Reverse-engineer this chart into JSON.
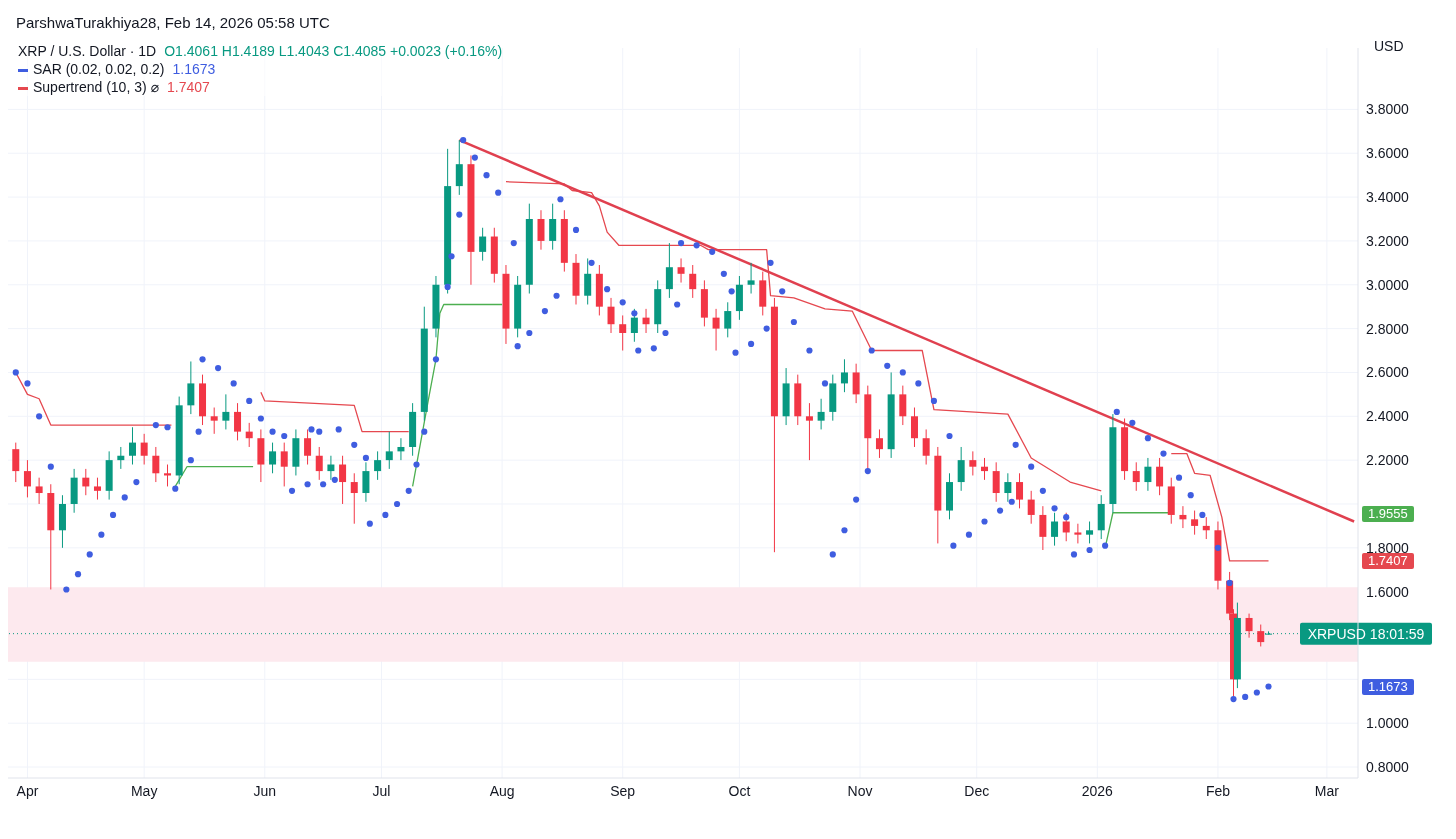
{
  "chart_data": {
    "type": "candlestick",
    "title": "XRP / U.S. Dollar · 1D",
    "subtitle": "O1.4061 H1.4189 L1.4043 C1.4085 +0.0023 (+0.16%)",
    "ylabel": "USD",
    "annotations": [
      "ParshwaTurakhiya28, Feb 14, 2026 05:58 UTC",
      "1.1673",
      "1.7407",
      "1.9555",
      "1.7407",
      "1.1673"
    ],
    "xlim": [
      "2025-03-27",
      "2026-03-09"
    ],
    "xticks": [
      {
        "value": "2025-04-01",
        "label": "Apr"
      },
      {
        "value": "2025-05-01",
        "label": "May"
      },
      {
        "value": "2025-06-01",
        "label": "Jun"
      },
      {
        "value": "2025-07-01",
        "label": "Jul"
      },
      {
        "value": "2025-08-01",
        "label": "Aug"
      },
      {
        "value": "2025-09-01",
        "label": "Sep"
      },
      {
        "value": "2025-10-01",
        "label": "Oct"
      },
      {
        "value": "2025-11-01",
        "label": "Nov"
      },
      {
        "value": "2025-12-01",
        "label": "Dec"
      },
      {
        "value": "2026-01-01",
        "label": "2026"
      },
      {
        "value": "2026-02-01",
        "label": "Feb"
      },
      {
        "value": "2026-03-01",
        "label": "Mar"
      }
    ],
    "ylim": [
      0.75,
      4.08
    ],
    "yticks": [
      {
        "value": 0.8,
        "label": "0.8000"
      },
      {
        "value": 1.0,
        "label": "1.0000"
      },
      {
        "value": 1.2,
        "label": null
      },
      {
        "value": 1.4,
        "label": null
      },
      {
        "value": 1.6,
        "label": "1.6000"
      },
      {
        "value": 1.8,
        "label": "1.8000"
      },
      {
        "value": 2.0,
        "label": null
      },
      {
        "value": 2.2,
        "label": "2.2000"
      },
      {
        "value": 2.4,
        "label": "2.4000"
      },
      {
        "value": 2.6,
        "label": "2.6000"
      },
      {
        "value": 2.8,
        "label": "2.8000"
      },
      {
        "value": 3.0,
        "label": "3.0000"
      },
      {
        "value": 3.2,
        "label": "3.2000"
      },
      {
        "value": 3.4,
        "label": "3.4000"
      },
      {
        "value": 3.6,
        "label": "3.6000"
      },
      {
        "value": 3.8,
        "label": "3.8000"
      }
    ],
    "grid": true,
    "legend": "top left",
    "bands": [
      {
        "axis": "y",
        "from": 1.28,
        "to": 1.62,
        "color": "#fde9ee"
      }
    ],
    "ref_lines": [
      {
        "axis": "y",
        "value": 1.4085,
        "label": "XRPUSD 18:01:59",
        "color": "#089981",
        "line_style": "dotted"
      }
    ],
    "series": [
      {
        "x": [
          "2025-03-29",
          "2025-04-01",
          "2025-04-04",
          "2025-04-07",
          "2025-04-10",
          "2025-04-13",
          "2025-04-16",
          "2025-04-19",
          "2025-04-22",
          "2025-04-25",
          "2025-04-28",
          "2025-05-01",
          "2025-05-04",
          "2025-05-07",
          "2025-05-10",
          "2025-05-13",
          "2025-05-16",
          "2025-05-19",
          "2025-05-22",
          "2025-05-25",
          "2025-05-28",
          "2025-05-31",
          "2025-06-03",
          "2025-06-06",
          "2025-06-09",
          "2025-06-12",
          "2025-06-15",
          "2025-06-18",
          "2025-06-21",
          "2025-06-24",
          "2025-06-27",
          "2025-06-30",
          "2025-07-03",
          "2025-07-06",
          "2025-07-09",
          "2025-07-12",
          "2025-07-15",
          "2025-07-18",
          "2025-07-21",
          "2025-07-24",
          "2025-07-27",
          "2025-07-30",
          "2025-08-02",
          "2025-08-05",
          "2025-08-08",
          "2025-08-11",
          "2025-08-14",
          "2025-08-17",
          "2025-08-20",
          "2025-08-23",
          "2025-08-26",
          "2025-08-29",
          "2025-09-01",
          "2025-09-04",
          "2025-09-07",
          "2025-09-10",
          "2025-09-13",
          "2025-09-16",
          "2025-09-19",
          "2025-09-22",
          "2025-09-25",
          "2025-09-28",
          "2025-10-01",
          "2025-10-04",
          "2025-10-07",
          "2025-10-10",
          "2025-10-13",
          "2025-10-16",
          "2025-10-19",
          "2025-10-22",
          "2025-10-25",
          "2025-10-28",
          "2025-10-31",
          "2025-11-03",
          "2025-11-06",
          "2025-11-09",
          "2025-11-12",
          "2025-11-15",
          "2025-11-18",
          "2025-11-21",
          "2025-11-24",
          "2025-11-27",
          "2025-11-30",
          "2025-12-03",
          "2025-12-06",
          "2025-12-09",
          "2025-12-12",
          "2025-12-15",
          "2025-12-18",
          "2025-12-21",
          "2025-12-24",
          "2025-12-27",
          "2025-12-30",
          "2026-01-02",
          "2026-01-05",
          "2026-01-08",
          "2026-01-11",
          "2026-01-14",
          "2026-01-17",
          "2026-01-20",
          "2026-01-23",
          "2026-01-26",
          "2026-01-29",
          "2026-02-01",
          "2026-02-04",
          "2026-02-05",
          "2026-02-06",
          "2026-02-09",
          "2026-02-12",
          "2026-02-14"
        ],
        "ohlc": [
          [
            2.25,
            2.28,
            2.1,
            2.15
          ],
          [
            2.15,
            2.2,
            2.03,
            2.08
          ],
          [
            2.08,
            2.12,
            2.0,
            2.05
          ],
          [
            2.05,
            2.09,
            1.61,
            1.88
          ],
          [
            1.88,
            2.04,
            1.8,
            2.0
          ],
          [
            2.0,
            2.16,
            1.96,
            2.12
          ],
          [
            2.12,
            2.16,
            2.04,
            2.08
          ],
          [
            2.08,
            2.12,
            2.02,
            2.06
          ],
          [
            2.06,
            2.24,
            2.02,
            2.2
          ],
          [
            2.2,
            2.26,
            2.16,
            2.22
          ],
          [
            2.22,
            2.35,
            2.18,
            2.28
          ],
          [
            2.28,
            2.32,
            2.18,
            2.22
          ],
          [
            2.22,
            2.26,
            2.1,
            2.14
          ],
          [
            2.14,
            2.18,
            2.08,
            2.13
          ],
          [
            2.13,
            2.49,
            2.09,
            2.45
          ],
          [
            2.45,
            2.65,
            2.41,
            2.55
          ],
          [
            2.55,
            2.59,
            2.36,
            2.4
          ],
          [
            2.4,
            2.44,
            2.32,
            2.38
          ],
          [
            2.38,
            2.5,
            2.34,
            2.42
          ],
          [
            2.42,
            2.46,
            2.29,
            2.33
          ],
          [
            2.33,
            2.37,
            2.26,
            2.3
          ],
          [
            2.3,
            2.34,
            2.1,
            2.18
          ],
          [
            2.18,
            2.28,
            2.14,
            2.24
          ],
          [
            2.24,
            2.28,
            2.08,
            2.17
          ],
          [
            2.17,
            2.34,
            2.13,
            2.3
          ],
          [
            2.3,
            2.34,
            2.18,
            2.22
          ],
          [
            2.22,
            2.26,
            2.11,
            2.15
          ],
          [
            2.15,
            2.22,
            2.11,
            2.18
          ],
          [
            2.18,
            2.22,
            2.0,
            2.1
          ],
          [
            2.1,
            2.14,
            1.91,
            2.05
          ],
          [
            2.05,
            2.19,
            2.01,
            2.15
          ],
          [
            2.15,
            2.24,
            2.11,
            2.2
          ],
          [
            2.2,
            2.33,
            2.16,
            2.24
          ],
          [
            2.24,
            2.3,
            2.2,
            2.26
          ],
          [
            2.26,
            2.46,
            2.22,
            2.42
          ],
          [
            2.42,
            2.9,
            2.38,
            2.8
          ],
          [
            2.8,
            3.04,
            2.76,
            3.0
          ],
          [
            3.0,
            3.62,
            2.96,
            3.45
          ],
          [
            3.45,
            3.66,
            3.41,
            3.55
          ],
          [
            3.55,
            3.59,
            3.0,
            3.15
          ],
          [
            3.15,
            3.26,
            3.11,
            3.22
          ],
          [
            3.22,
            3.26,
            3.01,
            3.05
          ],
          [
            3.05,
            3.09,
            2.73,
            2.8
          ],
          [
            2.8,
            3.04,
            2.76,
            3.0
          ],
          [
            3.0,
            3.37,
            2.96,
            3.3
          ],
          [
            3.3,
            3.34,
            3.16,
            3.2
          ],
          [
            3.2,
            3.37,
            3.16,
            3.3
          ],
          [
            3.3,
            3.34,
            3.06,
            3.1
          ],
          [
            3.1,
            3.14,
            2.91,
            2.95
          ],
          [
            2.95,
            3.12,
            2.91,
            3.05
          ],
          [
            3.05,
            3.09,
            2.86,
            2.9
          ],
          [
            2.9,
            2.94,
            2.78,
            2.82
          ],
          [
            2.82,
            2.86,
            2.7,
            2.78
          ],
          [
            2.78,
            2.89,
            2.74,
            2.85
          ],
          [
            2.85,
            2.89,
            2.78,
            2.82
          ],
          [
            2.82,
            3.02,
            2.78,
            2.98
          ],
          [
            2.98,
            3.19,
            2.94,
            3.08
          ],
          [
            3.08,
            3.12,
            3.01,
            3.05
          ],
          [
            3.05,
            3.09,
            2.94,
            2.98
          ],
          [
            2.98,
            3.02,
            2.81,
            2.85
          ],
          [
            2.85,
            2.89,
            2.7,
            2.8
          ],
          [
            2.8,
            2.92,
            2.76,
            2.88
          ],
          [
            2.88,
            3.04,
            2.84,
            3.0
          ],
          [
            3.0,
            3.1,
            2.96,
            3.02
          ],
          [
            3.02,
            3.06,
            2.86,
            2.9
          ],
          [
            2.9,
            2.94,
            1.78,
            2.4
          ],
          [
            2.4,
            2.62,
            2.36,
            2.55
          ],
          [
            2.55,
            2.59,
            2.36,
            2.4
          ],
          [
            2.4,
            2.46,
            2.2,
            2.38
          ],
          [
            2.38,
            2.48,
            2.34,
            2.42
          ],
          [
            2.42,
            2.59,
            2.38,
            2.55
          ],
          [
            2.55,
            2.66,
            2.51,
            2.6
          ],
          [
            2.6,
            2.64,
            2.46,
            2.5
          ],
          [
            2.5,
            2.54,
            2.15,
            2.3
          ],
          [
            2.3,
            2.34,
            2.21,
            2.25
          ],
          [
            2.25,
            2.6,
            2.21,
            2.5
          ],
          [
            2.5,
            2.54,
            2.36,
            2.4
          ],
          [
            2.4,
            2.44,
            2.26,
            2.3
          ],
          [
            2.3,
            2.34,
            2.18,
            2.22
          ],
          [
            2.22,
            2.26,
            1.82,
            1.97
          ],
          [
            1.97,
            2.14,
            1.93,
            2.1
          ],
          [
            2.1,
            2.26,
            2.06,
            2.2
          ],
          [
            2.2,
            2.24,
            2.13,
            2.17
          ],
          [
            2.17,
            2.21,
            2.11,
            2.15
          ],
          [
            2.15,
            2.19,
            2.01,
            2.05
          ],
          [
            2.05,
            2.14,
            2.01,
            2.1
          ],
          [
            2.1,
            2.14,
            1.98,
            2.02
          ],
          [
            2.02,
            2.06,
            1.91,
            1.95
          ],
          [
            1.95,
            1.99,
            1.79,
            1.85
          ],
          [
            1.85,
            1.96,
            1.81,
            1.92
          ],
          [
            1.92,
            1.96,
            1.83,
            1.87
          ],
          [
            1.87,
            1.91,
            1.82,
            1.86
          ],
          [
            1.86,
            1.92,
            1.82,
            1.88
          ],
          [
            1.88,
            2.04,
            1.84,
            2.0
          ],
          [
            2.0,
            2.41,
            1.96,
            2.35
          ],
          [
            2.35,
            2.39,
            2.11,
            2.15
          ],
          [
            2.15,
            2.19,
            2.06,
            2.1
          ],
          [
            2.1,
            2.21,
            2.06,
            2.17
          ],
          [
            2.17,
            2.21,
            2.04,
            2.08
          ],
          [
            2.08,
            2.12,
            1.91,
            1.95
          ],
          [
            1.95,
            1.99,
            1.89,
            1.93
          ],
          [
            1.93,
            1.97,
            1.86,
            1.9
          ],
          [
            1.9,
            1.94,
            1.84,
            1.88
          ],
          [
            1.88,
            1.92,
            1.61,
            1.65
          ],
          [
            1.65,
            1.69,
            1.47,
            1.5
          ],
          [
            1.5,
            1.52,
            1.12,
            1.2
          ],
          [
            1.2,
            1.55,
            1.16,
            1.48
          ],
          [
            1.48,
            1.5,
            1.39,
            1.42
          ],
          [
            1.42,
            1.45,
            1.35,
            1.37
          ],
          [
            1.4061,
            1.4189,
            1.4043,
            1.4085
          ]
        ],
        "colors": [
          "#f23645",
          "#f23645",
          "#f23645",
          "#f23645",
          "#089981",
          "#089981",
          "#f23645",
          "#f23645",
          "#089981",
          "#089981",
          "#089981",
          "#f23645",
          "#f23645",
          "#f23645",
          "#089981",
          "#089981",
          "#f23645",
          "#f23645",
          "#089981",
          "#f23645",
          "#f23645",
          "#f23645",
          "#089981",
          "#f23645",
          "#089981",
          "#f23645",
          "#f23645",
          "#089981",
          "#f23645",
          "#f23645",
          "#089981",
          "#089981",
          "#089981",
          "#089981",
          "#089981",
          "#089981",
          "#089981",
          "#089981",
          "#089981",
          "#f23645",
          "#089981",
          "#f23645",
          "#f23645",
          "#089981",
          "#089981",
          "#f23645",
          "#089981",
          "#f23645",
          "#f23645",
          "#089981",
          "#f23645",
          "#f23645",
          "#f23645",
          "#089981",
          "#f23645",
          "#089981",
          "#089981",
          "#f23645",
          "#f23645",
          "#f23645",
          "#f23645",
          "#089981",
          "#089981",
          "#089981",
          "#f23645",
          "#f23645",
          "#089981",
          "#f23645",
          "#f23645",
          "#089981",
          "#089981",
          "#089981",
          "#f23645",
          "#f23645",
          "#f23645",
          "#089981",
          "#f23645",
          "#f23645",
          "#f23645",
          "#f23645",
          "#089981",
          "#089981",
          "#f23645",
          "#f23645",
          "#f23645",
          "#089981",
          "#f23645",
          "#f23645",
          "#f23645",
          "#089981",
          "#f23645",
          "#f23645",
          "#089981",
          "#089981",
          "#089981",
          "#f23645",
          "#f23645",
          "#089981",
          "#f23645",
          "#f23645",
          "#f23645",
          "#f23645",
          "#f23645",
          "#f23645",
          "#f23645",
          "#f23645",
          "#089981",
          "#f23645",
          "#f23645",
          "#089981"
        ]
      },
      {
        "type": "scatter",
        "name": "SAR (0.02, 0.02, 0.2)",
        "color": "#3f5de0",
        "marker": "circle",
        "x": [
          "2025-03-29",
          "2025-04-01",
          "2025-04-04",
          "2025-04-07",
          "2025-04-11",
          "2025-04-14",
          "2025-04-17",
          "2025-04-20",
          "2025-04-23",
          "2025-04-26",
          "2025-04-29",
          "2025-05-04",
          "2025-05-07",
          "2025-05-09",
          "2025-05-13",
          "2025-05-15",
          "2025-05-16",
          "2025-05-20",
          "2025-05-24",
          "2025-05-28",
          "2025-05-31",
          "2025-06-03",
          "2025-06-06",
          "2025-06-08",
          "2025-06-12",
          "2025-06-13",
          "2025-06-15",
          "2025-06-16",
          "2025-06-19",
          "2025-06-20",
          "2025-06-24",
          "2025-06-27",
          "2025-06-28",
          "2025-07-02",
          "2025-07-05",
          "2025-07-08",
          "2025-07-10",
          "2025-07-12",
          "2025-07-15",
          "2025-07-18",
          "2025-07-19",
          "2025-07-21",
          "2025-07-22",
          "2025-07-25",
          "2025-07-28",
          "2025-07-31",
          "2025-08-04",
          "2025-08-05",
          "2025-08-08",
          "2025-08-12",
          "2025-08-15",
          "2025-08-16",
          "2025-08-20",
          "2025-08-24",
          "2025-08-28",
          "2025-09-01",
          "2025-09-04",
          "2025-09-05",
          "2025-09-09",
          "2025-09-12",
          "2025-09-15",
          "2025-09-16",
          "2025-09-20",
          "2025-09-24",
          "2025-09-27",
          "2025-09-29",
          "2025-09-30",
          "2025-10-04",
          "2025-10-08",
          "2025-10-09",
          "2025-10-12",
          "2025-10-15",
          "2025-10-19",
          "2025-10-23",
          "2025-10-25",
          "2025-10-28",
          "2025-10-31",
          "2025-11-03",
          "2025-11-04",
          "2025-11-08",
          "2025-11-12",
          "2025-11-16",
          "2025-11-20",
          "2025-11-24",
          "2025-11-25",
          "2025-11-29",
          "2025-12-03",
          "2025-12-07",
          "2025-12-10",
          "2025-12-11",
          "2025-12-15",
          "2025-12-18",
          "2025-12-21",
          "2025-12-24",
          "2025-12-26",
          "2025-12-30",
          "2026-01-03",
          "2026-01-06",
          "2026-01-10",
          "2026-01-14",
          "2026-01-18",
          "2026-01-22",
          "2026-01-25",
          "2026-01-28",
          "2026-02-01",
          "2026-02-04",
          "2026-02-05",
          "2026-02-08",
          "2026-02-11",
          "2026-02-14"
        ],
        "values": [
          2.6,
          2.55,
          2.4,
          2.17,
          1.61,
          1.68,
          1.77,
          1.86,
          1.95,
          2.03,
          2.1,
          2.36,
          2.35,
          2.07,
          2.2,
          2.33,
          2.66,
          2.62,
          2.55,
          2.47,
          2.39,
          2.33,
          2.31,
          2.06,
          2.09,
          2.34,
          2.33,
          2.09,
          2.11,
          2.34,
          2.27,
          2.21,
          1.91,
          1.95,
          2.0,
          2.06,
          2.18,
          2.33,
          2.66,
          2.99,
          3.13,
          3.32,
          3.66,
          3.58,
          3.5,
          3.42,
          3.19,
          2.72,
          2.78,
          2.88,
          2.95,
          3.39,
          3.25,
          3.1,
          2.98,
          2.92,
          2.87,
          2.7,
          2.71,
          2.78,
          2.91,
          3.19,
          3.18,
          3.15,
          3.05,
          2.97,
          2.69,
          2.73,
          2.8,
          3.1,
          2.97,
          2.83,
          2.7,
          2.55,
          1.77,
          1.88,
          2.02,
          2.15,
          2.7,
          2.63,
          2.6,
          2.55,
          2.47,
          2.31,
          1.81,
          1.86,
          1.92,
          1.97,
          2.01,
          2.27,
          2.17,
          2.06,
          1.98,
          1.94,
          1.77,
          1.79,
          1.81,
          2.42,
          2.37,
          2.3,
          2.23,
          2.12,
          2.04,
          1.95,
          1.8,
          1.64,
          1.11,
          1.12,
          1.14,
          1.1673
        ]
      },
      {
        "type": "line",
        "name": "Supertrend (10, 3) ⌀",
        "color": "#e5484f",
        "x": [
          "2025-03-29",
          "2025-04-01",
          "2025-04-04",
          "2025-04-07",
          "2025-05-08",
          "2025-05-09",
          "2025-05-31",
          "2025-06-01",
          "2025-06-24",
          "2025-06-26",
          "2025-07-08",
          "2025-07-09",
          "2025-08-02",
          "2025-08-17",
          "2025-08-19",
          "2025-08-24",
          "2025-08-26",
          "2025-08-28",
          "2025-08-31",
          "2025-09-21",
          "2025-09-23",
          "2025-10-08",
          "2025-10-09",
          "2025-10-15",
          "2025-10-23",
          "2025-10-30",
          "2025-11-04",
          "2025-11-17",
          "2025-11-20",
          "2025-12-09",
          "2025-12-15",
          "2025-12-25",
          "2026-01-02",
          "2026-01-03",
          "2026-01-20",
          "2026-01-24",
          "2026-01-26",
          "2026-01-30",
          "2026-02-02",
          "2026-02-04",
          "2026-02-14"
        ],
        "values": [
          2.6,
          2.5,
          2.48,
          2.36,
          2.36,
          null,
          2.51,
          2.47,
          2.45,
          2.33,
          2.33,
          null,
          3.47,
          3.46,
          3.43,
          3.42,
          3.36,
          3.24,
          3.18,
          3.18,
          3.16,
          3.16,
          2.95,
          2.94,
          2.89,
          2.88,
          2.7,
          2.7,
          2.43,
          2.41,
          2.21,
          2.1,
          2.06,
          null,
          2.23,
          2.23,
          2.14,
          2.13,
          1.94,
          1.74,
          1.7407
        ]
      },
      {
        "type": "line",
        "color": "#4caf50",
        "x": [
          "2025-05-09",
          "2025-05-12",
          "2025-05-29",
          "2025-05-30",
          "2025-07-09",
          "2025-07-13",
          "2025-07-15",
          "2025-07-16",
          "2025-07-17",
          "2025-08-01",
          "2025-08-02",
          "2026-01-03",
          "2026-01-05",
          "2026-01-20"
        ],
        "values": [
          2.08,
          2.17,
          2.17,
          null,
          2.08,
          2.47,
          2.66,
          2.87,
          2.91,
          2.91,
          null,
          1.8,
          1.96,
          1.96
        ]
      },
      {
        "type": "line",
        "color": "#e0404f",
        "x": [
          "2025-07-21",
          "2026-03-08"
        ],
        "values": [
          3.66,
          1.92
        ]
      }
    ]
  }
}
